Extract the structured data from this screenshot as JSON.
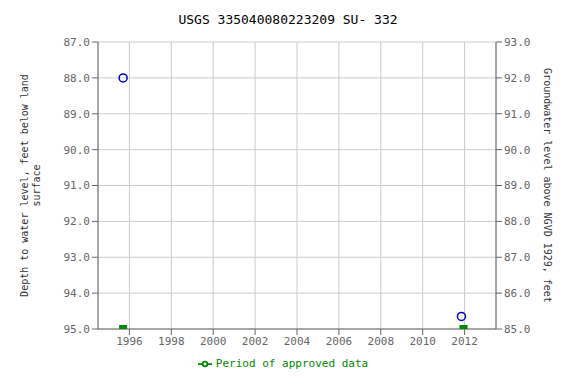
{
  "chart_data": {
    "type": "scatter",
    "title": "USGS 335040080223209 SU- 332",
    "ylabel": "Depth to water level, feet below land\nsurface",
    "y2label": "Groundwater level above NGVD 1929, feet",
    "xlim": [
      1994.5,
      2013.5
    ],
    "xticks": [
      1996,
      1998,
      2000,
      2002,
      2004,
      2006,
      2008,
      2010,
      2012
    ],
    "ylim": [
      95.0,
      87.0
    ],
    "yticks": [
      {
        "value": 87.0,
        "label": "87.0"
      },
      {
        "value": 88.0,
        "label": "88.0"
      },
      {
        "value": 89.0,
        "label": "89.0"
      },
      {
        "value": 90.0,
        "label": "90.0"
      },
      {
        "value": 91.0,
        "label": "91.0"
      },
      {
        "value": 92.0,
        "label": "92.0"
      },
      {
        "value": 93.0,
        "label": "93.0"
      },
      {
        "value": 94.0,
        "label": "94.0"
      },
      {
        "value": 95.0,
        "label": "95.0"
      }
    ],
    "y2lim": [
      85.0,
      93.0
    ],
    "y2ticks": [
      {
        "value": 93.0,
        "label": "93.0"
      },
      {
        "value": 92.0,
        "label": "92.0"
      },
      {
        "value": 91.0,
        "label": "91.0"
      },
      {
        "value": 90.0,
        "label": "90.0"
      },
      {
        "value": 89.0,
        "label": "89.0"
      },
      {
        "value": 88.0,
        "label": "88.0"
      },
      {
        "value": 87.0,
        "label": "87.0"
      },
      {
        "value": 86.0,
        "label": "86.0"
      },
      {
        "value": 85.0,
        "label": "85.0"
      }
    ],
    "grid": true,
    "legend": "bottom",
    "series": [
      {
        "color": "#0000cc",
        "marker": "circle",
        "x": [
          1995.7,
          2011.85
        ],
        "values": [
          88.0,
          94.65
        ]
      },
      {
        "name": "Period of approved data",
        "color": "#008800",
        "marker": "square",
        "x": [
          1995.7,
          2011.95
        ],
        "values": [
          95.0,
          95.0
        ]
      }
    ]
  }
}
